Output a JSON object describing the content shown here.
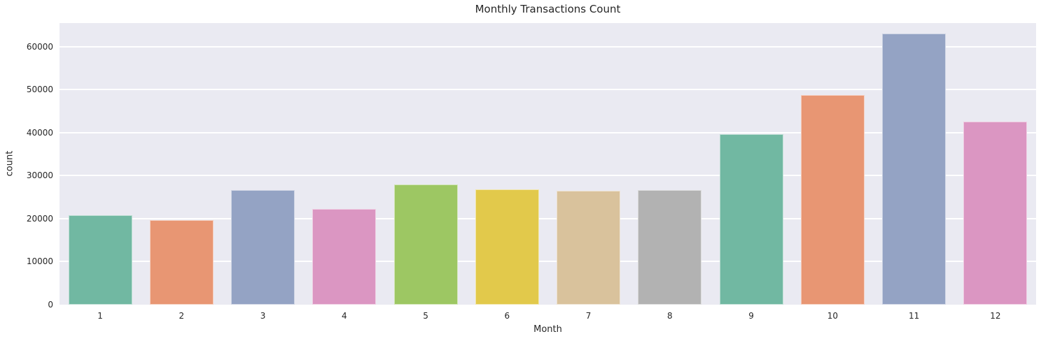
{
  "chart_data": {
    "type": "bar",
    "title": "Monthly Transactions Count",
    "xlabel": "Month",
    "ylabel": "count",
    "categories": [
      "1",
      "2",
      "3",
      "4",
      "5",
      "6",
      "7",
      "8",
      "9",
      "10",
      "11",
      "12"
    ],
    "values": [
      20800,
      19700,
      26700,
      22300,
      28000,
      26800,
      26500,
      26600,
      39600,
      48800,
      63000,
      42600
    ],
    "bar_colors": [
      "#71b8a2",
      "#e89673",
      "#94a3c4",
      "#db96c2",
      "#9dc763",
      "#e2c94b",
      "#d9c29c",
      "#b2b2b2",
      "#71b8a2",
      "#e89673",
      "#94a3c4",
      "#db96c2"
    ],
    "y_ticks": [
      0,
      10000,
      20000,
      30000,
      40000,
      50000,
      60000
    ],
    "ylim": [
      0,
      65500
    ],
    "grid": true,
    "legend_position": "none",
    "plot_background": "#eaeaf2",
    "grid_color": "#ffffff",
    "text_color": "#262626"
  }
}
